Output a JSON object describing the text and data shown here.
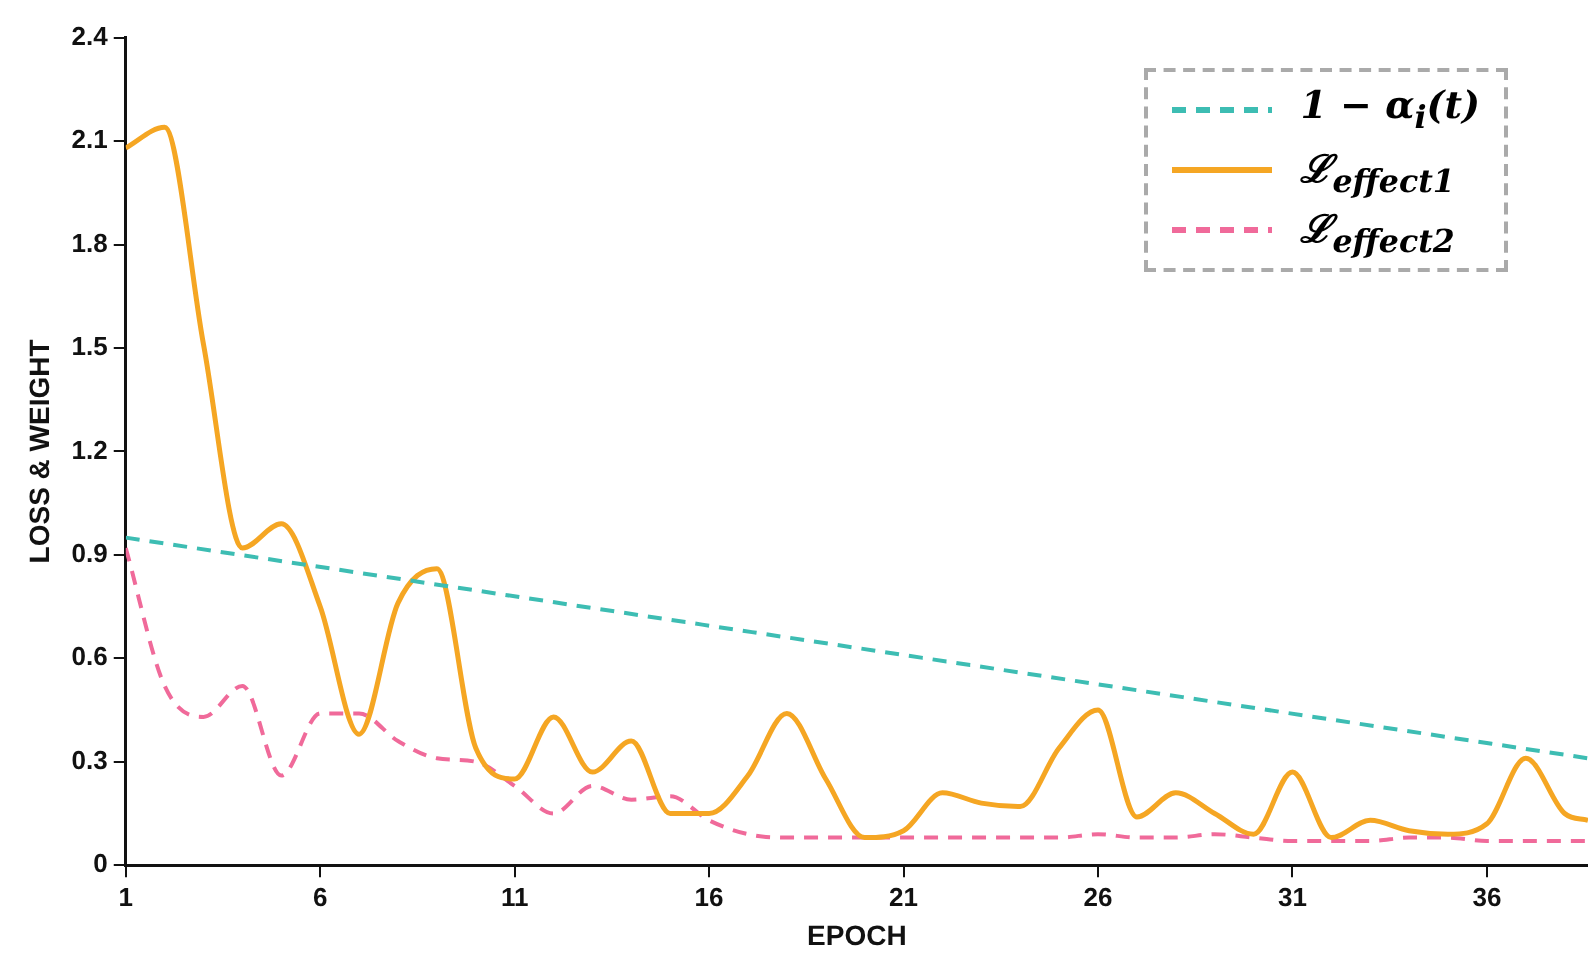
{
  "chart_data": {
    "type": "line",
    "xlabel": "EPOCH",
    "ylabel": "LOSS & WEIGHT",
    "xlim": [
      1,
      38.6
    ],
    "xticks": [
      1,
      6,
      11,
      16,
      21,
      26,
      31,
      36
    ],
    "ylim": [
      0,
      2.4
    ],
    "yticks": [
      0,
      0.3,
      0.6,
      0.9,
      1.2,
      1.5,
      1.8,
      2.1,
      2.4
    ],
    "grid": false,
    "legend": "top right",
    "marker": "none",
    "series": [
      {
        "name": "1 − α$_{i}$(t)",
        "color": "#3dbdb3",
        "line_style": "dashed",
        "x": [
          1,
          38.6
        ],
        "values": [
          0.95,
          0.31
        ]
      },
      {
        "name": "ℒ$_{effect1}$",
        "color": "#f5a623",
        "line_style": "solid",
        "x": [
          1,
          2,
          3,
          4,
          5,
          6,
          7,
          8,
          9,
          10,
          11,
          12,
          13,
          14,
          15,
          16,
          17,
          18,
          19,
          20,
          21,
          22,
          23,
          24,
          25,
          26,
          27,
          28,
          29,
          30,
          31,
          32,
          33,
          34,
          35,
          36,
          37,
          38,
          38.6
        ],
        "values": [
          2.08,
          2.14,
          1.51,
          0.92,
          0.99,
          0.75,
          0.38,
          0.76,
          0.86,
          0.34,
          0.25,
          0.43,
          0.27,
          0.36,
          0.15,
          0.15,
          0.26,
          0.44,
          0.25,
          0.08,
          0.1,
          0.21,
          0.18,
          0.17,
          0.34,
          0.45,
          0.14,
          0.21,
          0.15,
          0.09,
          0.27,
          0.08,
          0.13,
          0.1,
          0.09,
          0.12,
          0.31,
          0.15,
          0.13
        ]
      },
      {
        "name": "ℒ$_{effect2}$",
        "color": "#f06a9a",
        "line_style": "dashed",
        "x": [
          1,
          2,
          3,
          4,
          5,
          6,
          7,
          8,
          9,
          10,
          11,
          12,
          13,
          14,
          15,
          16,
          17,
          18,
          19,
          20,
          21,
          22,
          23,
          24,
          25,
          26,
          27,
          28,
          29,
          30,
          31,
          32,
          33,
          34,
          35,
          36,
          37,
          38,
          38.6
        ],
        "values": [
          0.92,
          0.52,
          0.43,
          0.52,
          0.26,
          0.44,
          0.44,
          0.36,
          0.31,
          0.3,
          0.23,
          0.15,
          0.23,
          0.19,
          0.2,
          0.13,
          0.09,
          0.08,
          0.08,
          0.08,
          0.08,
          0.08,
          0.08,
          0.08,
          0.08,
          0.09,
          0.08,
          0.08,
          0.09,
          0.08,
          0.07,
          0.07,
          0.07,
          0.08,
          0.08,
          0.07,
          0.07,
          0.07,
          0.07
        ]
      }
    ]
  }
}
